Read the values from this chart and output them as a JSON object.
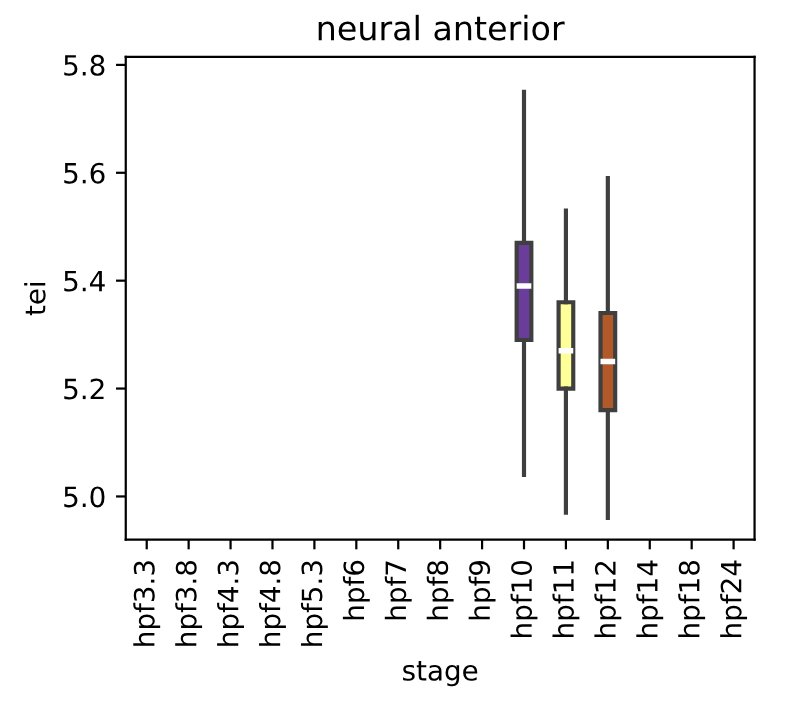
{
  "chart_data": {
    "type": "box",
    "title": "neural anterior",
    "xlabel": "stage",
    "ylabel": "tei",
    "categories": [
      "hpf3.3",
      "hpf3.8",
      "hpf4.3",
      "hpf4.8",
      "hpf5.3",
      "hpf6",
      "hpf7",
      "hpf8",
      "hpf9",
      "hpf10",
      "hpf11",
      "hpf12",
      "hpf14",
      "hpf18",
      "hpf24"
    ],
    "boxes": [
      null,
      null,
      null,
      null,
      null,
      null,
      null,
      null,
      null,
      {
        "low": 5.04,
        "q1": 5.29,
        "median": 5.39,
        "q3": 5.47,
        "high": 5.75
      },
      {
        "low": 4.97,
        "q1": 5.2,
        "median": 5.27,
        "q3": 5.36,
        "high": 5.53
      },
      {
        "low": 4.96,
        "q1": 5.16,
        "median": 5.25,
        "q3": 5.34,
        "high": 5.59
      },
      null,
      null,
      null
    ],
    "colors": [
      null,
      null,
      null,
      null,
      null,
      null,
      null,
      null,
      null,
      "#6a3d9a",
      "#ffff99",
      "#b15928",
      null,
      null,
      null
    ],
    "ylim": [
      4.92,
      5.815
    ],
    "yticks": [
      {
        "value": 5.0,
        "label": "5.0"
      },
      {
        "value": 5.2,
        "label": "5.2"
      },
      {
        "value": 5.4,
        "label": "5.4"
      },
      {
        "value": 5.6,
        "label": "5.6"
      },
      {
        "value": 5.8,
        "label": "5.8"
      }
    ],
    "grid": false
  }
}
